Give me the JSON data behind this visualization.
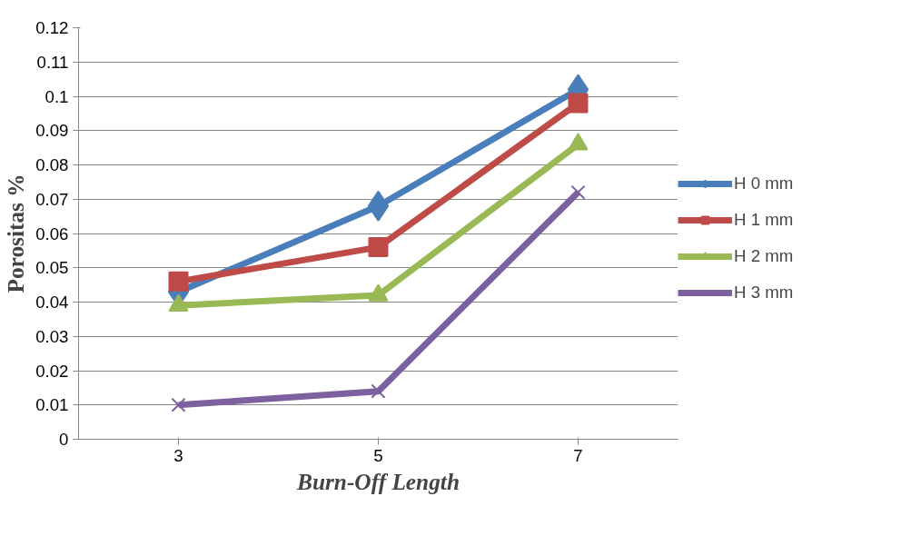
{
  "chart_data": {
    "type": "line",
    "categories": [
      "3",
      "5",
      "7"
    ],
    "xlabel": "Burn-Off Length",
    "ylabel": "Porositas %",
    "ylim": [
      0,
      0.12
    ],
    "yticks": [
      0,
      0.01,
      0.02,
      0.03,
      0.04,
      0.05,
      0.06,
      0.07,
      0.08,
      0.09,
      0.1,
      0.11,
      0.12
    ],
    "grid": "y",
    "legend": "right",
    "line_style": "solid",
    "series": [
      {
        "name": "H 0 mm",
        "color": "#4a7ebb",
        "marker": "diamond",
        "values": [
          0.043,
          0.068,
          0.102
        ]
      },
      {
        "name": "H 1 mm",
        "color": "#be4b48",
        "marker": "square",
        "values": [
          0.046,
          0.056,
          0.098
        ]
      },
      {
        "name": "H 2 mm",
        "color": "#98b954",
        "marker": "triangle",
        "values": [
          0.039,
          0.042,
          0.086
        ]
      },
      {
        "name": "H 3 mm",
        "color": "#7d60a0",
        "marker": "cross",
        "values": [
          0.01,
          0.014,
          0.072
        ]
      }
    ]
  }
}
